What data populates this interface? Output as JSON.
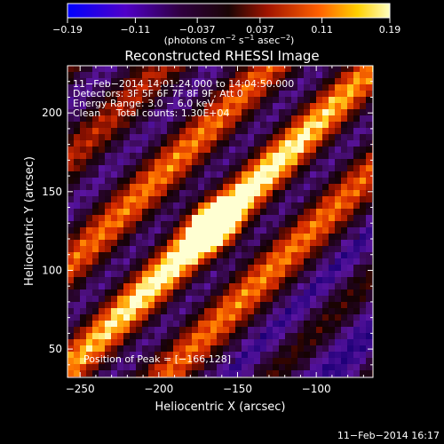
{
  "chart_data": {
    "type": "heatmap",
    "title": "Reconstructed RHESSI Image",
    "xlabel": "Heliocentric X (arcsec)",
    "ylabel": "Heliocentric Y (arcsec)",
    "xlim": [
      -258,
      -64
    ],
    "ylim": [
      32,
      230
    ],
    "xticks": [
      -250,
      -200,
      -150,
      -100
    ],
    "xtick_labels": [
      "−250",
      "−200",
      "−150",
      "−100"
    ],
    "yticks": [
      50,
      100,
      150,
      200
    ],
    "ytick_labels": [
      "50",
      "100",
      "150",
      "200"
    ],
    "colorbar": {
      "min": -0.19,
      "max": 0.19,
      "ticks": [
        -0.19,
        -0.11,
        -0.037,
        0.037,
        0.11,
        0.19
      ],
      "tick_labels": [
        "−0.19",
        "−0.11",
        "−0.037",
        "0.037",
        "0.11",
        "0.19"
      ],
      "units_prefix": "(photons cm",
      "units_exp1": "−2",
      "units_mid": " s",
      "units_exp2": "−1",
      "units_mid2": " asec",
      "units_exp3": "−2",
      "units_suffix": ")"
    },
    "annotations": [
      "11−Feb−2014 14:01:24.000 to 14:04:50.000",
      "Detectors: 3F 5F 6F 7F 8F 9F, Att 0",
      "Energy Range: 3.0 − 6.0 keV",
      "Clean     Total counts: 1.30E+04"
    ],
    "peak_label": "Position of Peak = [−166,128]",
    "peak": [
      -166,
      128
    ],
    "footer": "11−Feb−2014 16:17",
    "grid": false,
    "colors": {
      "colormap": [
        "#0000ff",
        "#4400cc",
        "#220044",
        "#5a0a0a",
        "#c81e00",
        "#ff7800",
        "#ffff50",
        "#ffffff"
      ]
    }
  }
}
